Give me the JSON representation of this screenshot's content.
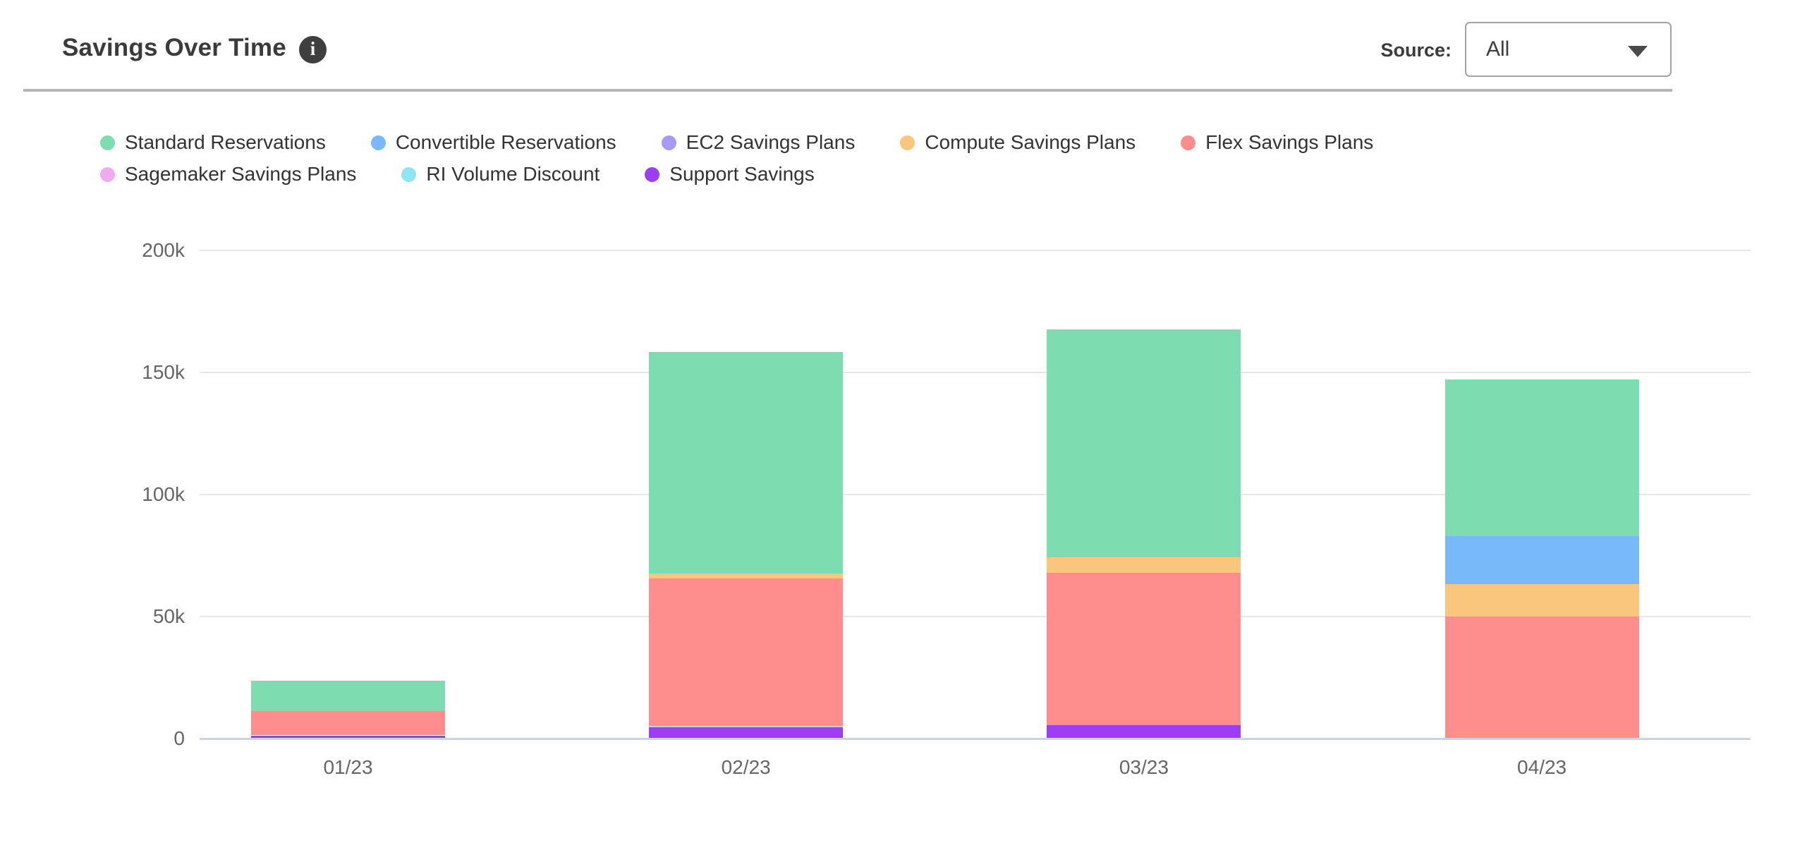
{
  "header": {
    "title": "Savings Over Time",
    "info_glyph": "i",
    "source_label": "Source:",
    "source_value": "All"
  },
  "chart_data": {
    "type": "bar",
    "stacked": true,
    "title": "Savings Over Time",
    "categories": [
      "01/23",
      "02/23",
      "03/23",
      "04/23"
    ],
    "series": [
      {
        "name": "Standard Reservations",
        "color": "#7eddb0",
        "values": [
          12300,
          90600,
          93300,
          64100
        ]
      },
      {
        "name": "Convertible Reservations",
        "color": "#77b9f9",
        "values": [
          0,
          0,
          0,
          19500
        ]
      },
      {
        "name": "EC2 Savings Plans",
        "color": "#a89af2",
        "values": [
          0,
          0,
          0,
          0
        ]
      },
      {
        "name": "Compute Savings Plans",
        "color": "#f9c67d",
        "values": [
          0,
          2100,
          6300,
          13500
        ]
      },
      {
        "name": "Flex Savings Plans",
        "color": "#fd8e8d",
        "values": [
          10000,
          60400,
          62500,
          49900
        ]
      },
      {
        "name": "Sagemaker Savings Plans",
        "color": "#efaaf0",
        "values": [
          0,
          0,
          0,
          0
        ]
      },
      {
        "name": "RI Volume Discount",
        "color": "#90e5f3",
        "values": [
          0,
          700,
          0,
          0
        ]
      },
      {
        "name": "Support Savings",
        "color": "#9b3ff2",
        "values": [
          1300,
          4500,
          5400,
          0
        ]
      }
    ],
    "stack_order_bottom_to_top": [
      "Support Savings",
      "RI Volume Discount",
      "Sagemaker Savings Plans",
      "Flex Savings Plans",
      "Compute Savings Plans",
      "EC2 Savings Plans",
      "Convertible Reservations",
      "Standard Reservations"
    ],
    "legend_rows": [
      [
        "Standard Reservations",
        "Convertible Reservations",
        "EC2 Savings Plans",
        "Compute Savings Plans",
        "Flex Savings Plans"
      ],
      [
        "Sagemaker Savings Plans",
        "RI Volume Discount",
        "Support Savings"
      ]
    ],
    "y_ticks": [
      {
        "value": 0,
        "label": "0"
      },
      {
        "value": 50000,
        "label": "50k"
      },
      {
        "value": 100000,
        "label": "100k"
      },
      {
        "value": 150000,
        "label": "150k"
      },
      {
        "value": 200000,
        "label": "200k"
      }
    ],
    "ylim": [
      0,
      200000
    ],
    "grid": true,
    "legend_position": "top-left",
    "colors": {
      "gridline": "#e7e7e7",
      "axis_line": "#ccd3e8",
      "tick_label": "#656565"
    }
  }
}
